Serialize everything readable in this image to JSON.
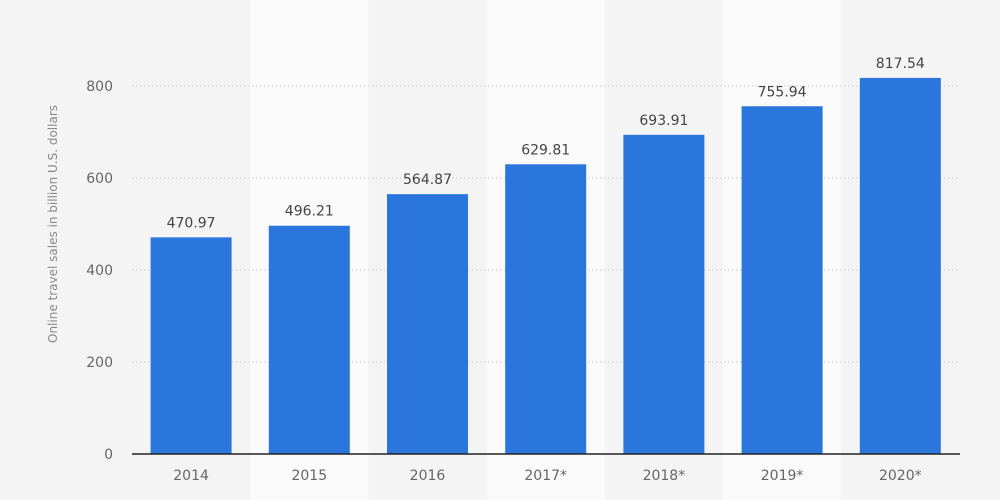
{
  "chart_data": {
    "type": "bar",
    "title": "",
    "xlabel": "",
    "ylabel": "Online travel sales in billion U.S. dollars",
    "categories": [
      "2014",
      "2015",
      "2016",
      "2017*",
      "2018*",
      "2019*",
      "2020*"
    ],
    "values": [
      470.97,
      496.21,
      564.87,
      629.81,
      693.91,
      755.94,
      817.54
    ],
    "data_labels": [
      "470.97",
      "496.21",
      "564.87",
      "629.81",
      "693.91",
      "755.94",
      "817.54"
    ],
    "ylim": [
      0,
      900
    ],
    "yticks": [
      0,
      200,
      400,
      600,
      800
    ],
    "grid": true,
    "legend": "none",
    "colors": {
      "bar": "#2a76dd",
      "background": "#f4f4f4",
      "band": "#fafafa",
      "grid": "#c8c8c8",
      "axis": "#222222"
    }
  }
}
